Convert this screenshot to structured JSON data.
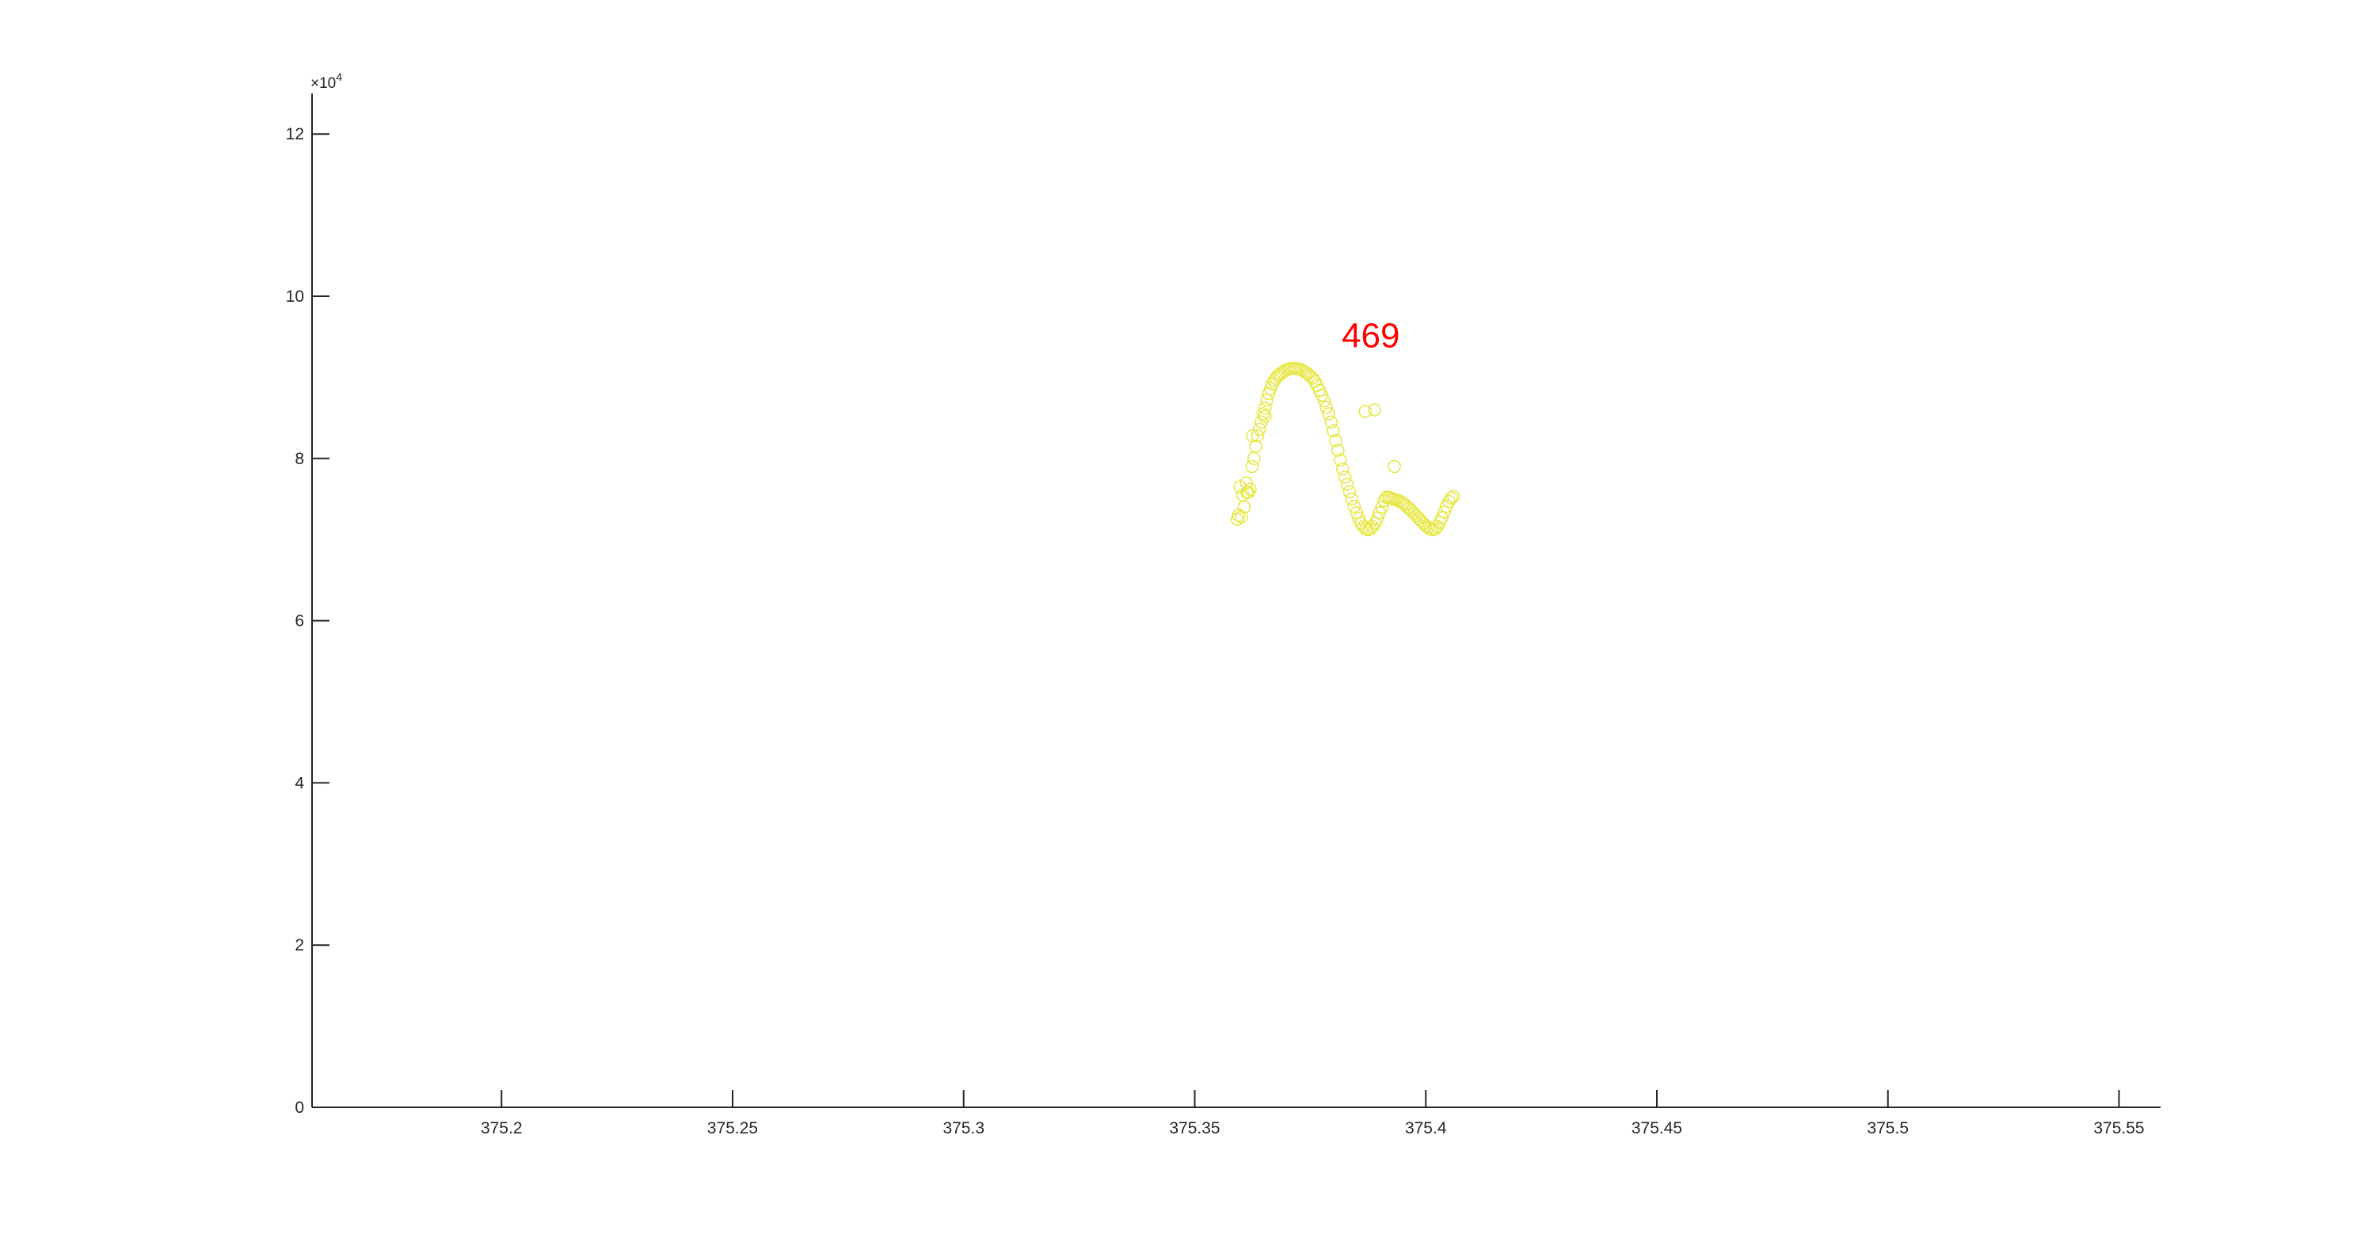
{
  "chart_data": {
    "type": "scatter",
    "title": "",
    "xlabel": "",
    "ylabel": "",
    "xlim": [
      375.159,
      375.559
    ],
    "ylim": [
      0,
      125000
    ],
    "x_ticks": [
      375.2,
      375.25,
      375.3,
      375.35,
      375.4,
      375.45,
      375.5,
      375.55
    ],
    "x_tick_labels": [
      "375.2",
      "375.25",
      "375.3",
      "375.35",
      "375.4",
      "375.45",
      "375.5",
      "375.55"
    ],
    "y_ticks": [
      0,
      20000,
      40000,
      60000,
      80000,
      100000,
      120000
    ],
    "y_tick_labels": [
      "0",
      "2",
      "4",
      "6",
      "8",
      "10",
      "12"
    ],
    "y_exponent_label": "×10",
    "y_exponent_power": "4",
    "grid": false,
    "marker": "open-circle",
    "marker_color": "#e8e84a",
    "series": [
      {
        "x": [
          375.3592,
          375.3595,
          375.3598,
          375.3601,
          375.3604,
          375.3607,
          375.3612,
          375.3616,
          375.362,
          375.3624,
          375.3628,
          375.3632,
          375.3636,
          375.364,
          375.3644,
          375.3648,
          375.3652,
          375.3656,
          375.366,
          375.3664,
          375.3668,
          375.3672,
          375.3676,
          375.368,
          375.3685,
          375.369,
          375.3695,
          375.37,
          375.3705,
          375.371,
          375.3715,
          375.372,
          375.3725,
          375.373,
          375.3735,
          375.374,
          375.3745,
          375.375,
          375.3755,
          375.376,
          375.3765,
          375.377,
          375.3775,
          375.378,
          375.3785,
          375.379,
          375.3795,
          375.38,
          375.3805,
          375.381,
          375.3815,
          375.382,
          375.3825,
          375.383,
          375.3835,
          375.384,
          375.3845,
          375.385,
          375.3855,
          375.386,
          375.3865,
          375.387,
          375.3875,
          375.388,
          375.3885,
          375.389,
          375.3895,
          375.39,
          375.3905,
          375.391,
          375.3915,
          375.392,
          375.3925,
          375.393,
          375.3935,
          375.394,
          375.3945,
          375.395,
          375.3955,
          375.396,
          375.3965,
          375.397,
          375.3975,
          375.398,
          375.3985,
          375.399,
          375.3995,
          375.4,
          375.4005,
          375.401,
          375.4015,
          375.402,
          375.4025,
          375.403,
          375.4035,
          375.404,
          375.4045,
          375.405,
          375.4055,
          375.406,
          375.3613,
          375.3625,
          375.3652,
          375.3869,
          375.3889,
          375.3932
        ],
        "y": [
          72500,
          73000,
          76500,
          72800,
          75500,
          74000,
          77000,
          75800,
          76200,
          79000,
          80000,
          81500,
          82800,
          83600,
          84500,
          85500,
          86200,
          87200,
          88000,
          88600,
          89200,
          89600,
          89900,
          90200,
          90400,
          90600,
          90800,
          90950,
          91050,
          91100,
          91120,
          91100,
          91050,
          90950,
          90800,
          90600,
          90400,
          90150,
          89900,
          89500,
          89000,
          88400,
          87800,
          87100,
          86300,
          85500,
          84500,
          83400,
          82200,
          81000,
          79800,
          78700,
          77700,
          76800,
          75900,
          75000,
          74100,
          73300,
          72600,
          72000,
          71600,
          71300,
          71200,
          71300,
          71600,
          72000,
          72600,
          73300,
          74000,
          74800,
          75200,
          75200,
          75100,
          75000,
          74900,
          74800,
          74700,
          74500,
          74300,
          74000,
          73800,
          73500,
          73200,
          72900,
          72600,
          72300,
          72000,
          71700,
          71500,
          71300,
          71200,
          71300,
          71600,
          72100,
          72700,
          73400,
          74100,
          74700,
          75100,
          75300,
          75800,
          82800,
          85200,
          85800,
          86000,
          79000
        ]
      }
    ],
    "annotations": [
      {
        "text": "469",
        "x": 375.3881,
        "y": 93700,
        "color": "#ff0000"
      }
    ]
  }
}
